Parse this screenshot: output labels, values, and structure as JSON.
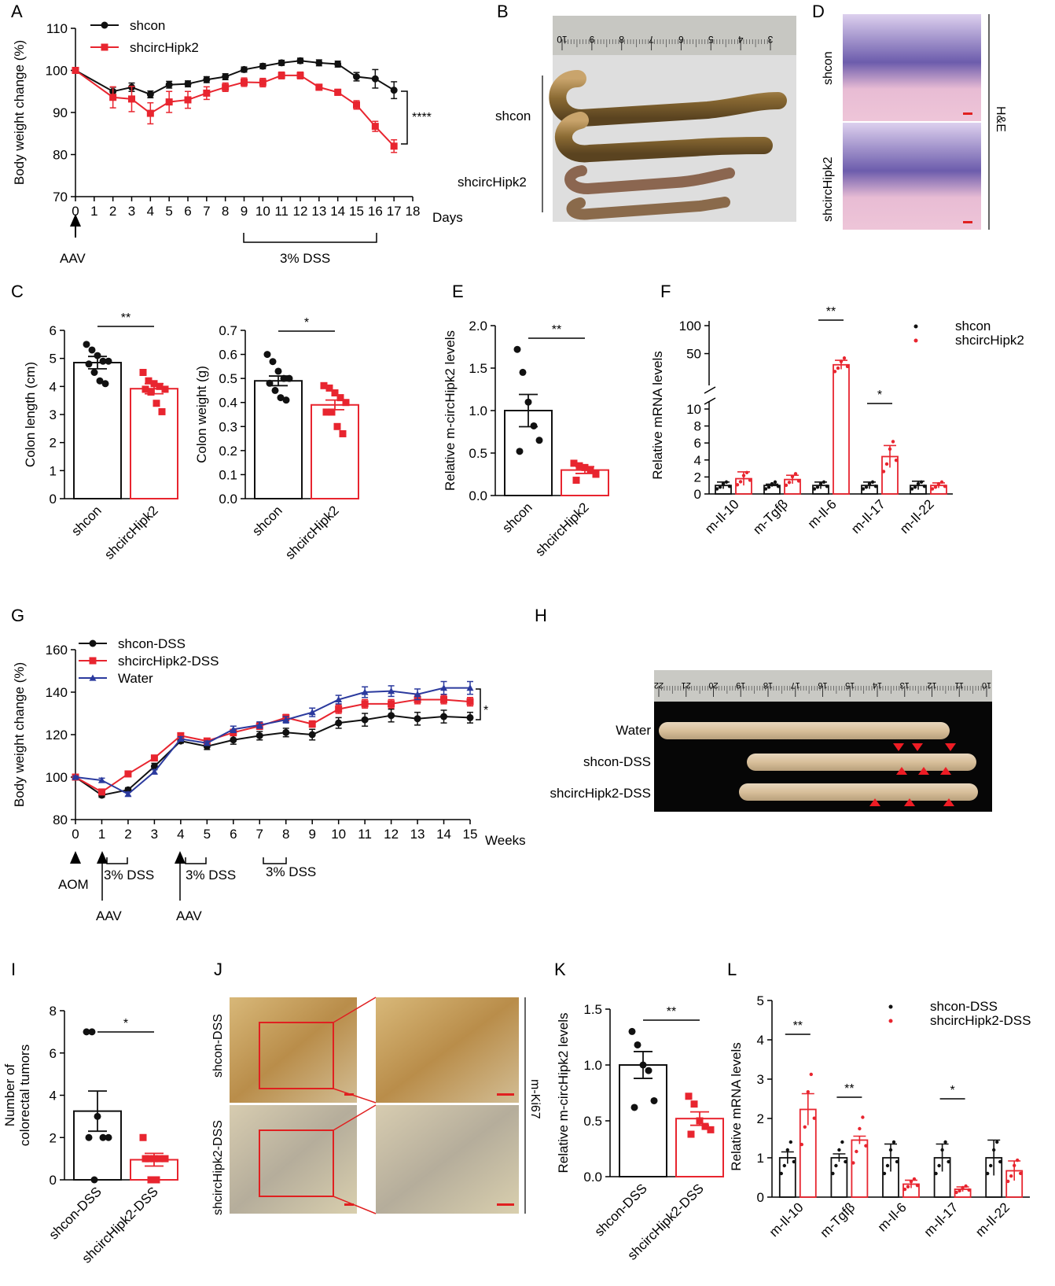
{
  "colors": {
    "black": "#111111",
    "red": "#e8252f",
    "blue": "#2b3a9e",
    "redBox": "#e02020"
  },
  "panels": {
    "A": "A",
    "B": "B",
    "C": "C",
    "D": "D",
    "E": "E",
    "F": "F",
    "G": "G",
    "H": "H",
    "I": "I",
    "J": "J",
    "K": "K",
    "L": "L"
  },
  "annotations": {
    "A_days": "Days",
    "A_aav": "AAV",
    "A_dss": "3% DSS",
    "A_sig": "****",
    "B_shcon": "shcon",
    "B_shcirc": "shcircHipk2",
    "D_shcon": "shcon",
    "D_shcirc": "shcircHipk2",
    "D_stain": "H&E",
    "G_weeks": "Weeks",
    "G_aom": "AOM",
    "G_aav1": "AAV",
    "G_aav2": "AAV",
    "G_dss1": "3% DSS",
    "G_dss2": "3% DSS",
    "G_dss3": "3% DSS",
    "G_sig": "*",
    "H_water": "Water",
    "H_shcon": "shcon-DSS",
    "H_shcirc": "shcircHipk2-DSS",
    "J_shcon": "shcon-DSS",
    "J_shcirc": "shcircHipk2-DSS",
    "J_stain": "m-Ki67",
    "B_ruler": [
      "10",
      "9",
      "8",
      "7",
      "6",
      "5",
      "4",
      "3"
    ],
    "H_ruler": [
      "22",
      "21",
      "20",
      "19",
      "18",
      "17",
      "16",
      "15",
      "14",
      "13",
      "12",
      "11",
      "10"
    ]
  },
  "chart_data": [
    {
      "id": "A",
      "type": "line",
      "ylabel": "Body weight change (%)",
      "ylim": [
        70,
        110
      ],
      "yticks": [
        70,
        80,
        90,
        100,
        110
      ],
      "x": [
        0,
        1,
        2,
        3,
        4,
        5,
        6,
        7,
        8,
        9,
        10,
        11,
        12,
        13,
        14,
        15,
        16,
        17,
        18
      ],
      "xlim": [
        0,
        18
      ],
      "series": [
        {
          "name": "shcon",
          "color": "#111111",
          "marker": "circle",
          "x": [
            0,
            2,
            3,
            4,
            5,
            6,
            7,
            8,
            9,
            10,
            11,
            12,
            13,
            14,
            15,
            16,
            17
          ],
          "values": [
            100,
            95,
            96,
            94.3,
            96.6,
            96.8,
            97.8,
            98.5,
            100.2,
            101,
            101.8,
            102.3,
            101.8,
            101.5,
            98.5,
            98,
            95.3
          ],
          "err": [
            0,
            1,
            1,
            0.8,
            0.8,
            0.7,
            0.7,
            0.7,
            0.6,
            0.6,
            0.6,
            0.6,
            0.7,
            0.7,
            1,
            2.2,
            2
          ]
        },
        {
          "name": "shcircHipk2",
          "color": "#e8252f",
          "marker": "square",
          "x": [
            0,
            2,
            3,
            4,
            5,
            6,
            7,
            8,
            9,
            10,
            11,
            12,
            13,
            14,
            15,
            16,
            17
          ],
          "values": [
            100,
            93.6,
            93.2,
            89.8,
            92.5,
            93,
            94.6,
            96,
            97.2,
            97.1,
            98.8,
            98.8,
            96,
            94.8,
            91.8,
            86.7,
            82
          ],
          "err": [
            0,
            2.5,
            3,
            2.5,
            2.5,
            2,
            1.5,
            1,
            1,
            1,
            0.8,
            0.8,
            0.7,
            0.7,
            1,
            1.2,
            1.5
          ]
        }
      ]
    },
    {
      "id": "C1",
      "type": "bar",
      "ylabel": "Colon length (cm)",
      "ylim": [
        0,
        6
      ],
      "yticks": [
        0,
        1,
        2,
        3,
        4,
        5,
        6
      ],
      "categories": [
        "shcon",
        "shcircHipk2"
      ],
      "values": [
        4.85,
        3.92
      ],
      "err": [
        0.22,
        0.18
      ],
      "points": [
        [
          5.5,
          5.3,
          5.1,
          4.9,
          4.9,
          4.8,
          4.5,
          4.2,
          4.1
        ],
        [
          4.5,
          4.2,
          4.1,
          4.0,
          3.9,
          3.9,
          3.8,
          3.4,
          3.1
        ]
      ],
      "sig": "**"
    },
    {
      "id": "C2",
      "type": "bar",
      "ylabel": "Colon weight (g)",
      "ylim": [
        0,
        0.7
      ],
      "yticks": [
        "0.0",
        "0.1",
        "0.2",
        "0.3",
        "0.4",
        "0.5",
        "0.6",
        "0.7"
      ],
      "categories": [
        "shcon",
        "shcircHipk2"
      ],
      "values": [
        0.49,
        0.39
      ],
      "err": [
        0.02,
        0.02
      ],
      "points": [
        [
          0.6,
          0.57,
          0.53,
          0.5,
          0.5,
          0.48,
          0.45,
          0.42,
          0.41
        ],
        [
          0.47,
          0.46,
          0.44,
          0.42,
          0.4,
          0.36,
          0.36,
          0.3,
          0.27
        ]
      ],
      "sig": "*"
    },
    {
      "id": "E",
      "type": "bar",
      "ylabel": "Relative m-circHipk2 levels",
      "ylim": [
        0,
        2.0
      ],
      "yticks": [
        "0.0",
        "0.5",
        "1.0",
        "1.5",
        "2.0"
      ],
      "categories": [
        "shcon",
        "shcircHipk2"
      ],
      "values": [
        1.0,
        0.3
      ],
      "err": [
        0.19,
        0.04
      ],
      "points": [
        [
          1.72,
          1.45,
          1.1,
          0.82,
          0.65,
          0.52
        ],
        [
          0.38,
          0.35,
          0.33,
          0.3,
          0.25,
          0.18
        ]
      ],
      "sig": "**"
    },
    {
      "id": "F",
      "type": "bar",
      "ylabel": "Relative mRNA levels",
      "yticks_low": [
        "0",
        "2",
        "4",
        "6",
        "8",
        "10"
      ],
      "yticks_high": [
        "50",
        "100"
      ],
      "categories": [
        "m-Il-10",
        "m-Tgfβ",
        "m-Il-6",
        "m-Il-17",
        "m-Il-22"
      ],
      "series": [
        {
          "name": "shcon",
          "color": "#111111",
          "values": [
            1.0,
            1.0,
            1.0,
            1.0,
            1.0
          ],
          "err": [
            0.4,
            0.15,
            0.4,
            0.4,
            0.5
          ]
        },
        {
          "name": "shcircHipk2",
          "color": "#e8252f",
          "values": [
            1.8,
            1.7,
            30,
            4.4,
            1.0
          ],
          "err": [
            0.8,
            0.5,
            8,
            1.3,
            0.3
          ]
        }
      ],
      "sig": [
        {
          "category": "m-Il-6",
          "label": "**"
        },
        {
          "category": "m-Il-17",
          "label": "*"
        }
      ]
    },
    {
      "id": "G",
      "type": "line",
      "ylabel": "Body weight change (%)",
      "ylim": [
        80,
        160
      ],
      "yticks": [
        80,
        100,
        120,
        140,
        160
      ],
      "xlim": [
        0,
        15
      ],
      "x": [
        0,
        1,
        2,
        3,
        4,
        5,
        6,
        7,
        8,
        9,
        10,
        11,
        12,
        13,
        14,
        15
      ],
      "series": [
        {
          "name": "shcon-DSS",
          "color": "#111111",
          "marker": "circle",
          "values": [
            100,
            91.5,
            94,
            105,
            117,
            114.5,
            117.5,
            119.5,
            121,
            120,
            125.5,
            127,
            129,
            127.5,
            128.5,
            128
          ],
          "err": [
            0.5,
            1,
            1,
            1.5,
            1,
            1.5,
            2,
            2,
            2,
            2.5,
            2.5,
            3,
            3,
            3,
            3,
            2.5
          ]
        },
        {
          "name": "shcircHipk2-DSS",
          "color": "#e8252f",
          "marker": "square",
          "values": [
            100,
            93,
            101.5,
            109,
            119.5,
            117,
            121,
            124,
            128,
            125,
            132,
            134.5,
            134.5,
            136.5,
            136.5,
            135.5
          ],
          "err": [
            0.5,
            1,
            1,
            1,
            1,
            1,
            1.5,
            1.5,
            1.5,
            1.5,
            2,
            2,
            2,
            2,
            2,
            2
          ]
        },
        {
          "name": "Water",
          "color": "#2b3a9e",
          "marker": "triangle",
          "values": [
            100,
            98.5,
            92,
            102.5,
            118,
            116,
            122.5,
            124.5,
            127,
            130.5,
            136.5,
            140,
            140.5,
            139,
            142,
            142
          ],
          "err": [
            0.5,
            1,
            1,
            1,
            1,
            1,
            1.5,
            1.5,
            1.5,
            2,
            2,
            2.5,
            2.5,
            2.5,
            3,
            3
          ]
        }
      ]
    },
    {
      "id": "I",
      "type": "bar",
      "ylabel_lines": [
        "Number of",
        "colorectal tumors"
      ],
      "ylim": [
        0,
        8
      ],
      "yticks": [
        0,
        2,
        4,
        6,
        8
      ],
      "categories": [
        "shcon-DSS",
        "shcircHipk2-DSS"
      ],
      "values": [
        3.25,
        0.95
      ],
      "err": [
        0.95,
        0.3
      ],
      "points": [
        [
          7,
          7,
          3,
          2,
          2,
          2,
          0
        ],
        [
          2,
          1,
          1,
          1,
          1,
          1,
          0,
          0
        ]
      ],
      "sig": "*"
    },
    {
      "id": "K",
      "type": "bar",
      "ylabel": "Relative m-circHipk2 levels",
      "ylim": [
        0,
        1.5
      ],
      "yticks": [
        "0.0",
        "0.5",
        "1.0",
        "1.5"
      ],
      "categories": [
        "shcon-DSS",
        "shcircHipk2-DSS"
      ],
      "values": [
        1.0,
        0.52
      ],
      "err": [
        0.12,
        0.06
      ],
      "points": [
        [
          1.3,
          1.18,
          1.0,
          0.95,
          0.68,
          0.62
        ],
        [
          0.72,
          0.65,
          0.5,
          0.45,
          0.42,
          0.38
        ]
      ],
      "sig": "**"
    },
    {
      "id": "L",
      "type": "bar",
      "ylabel": "Relative mRNA levels",
      "ylim": [
        0,
        5
      ],
      "yticks": [
        0,
        1,
        2,
        3,
        4,
        5
      ],
      "categories": [
        "m-Il-10",
        "m-Tgfβ",
        "m-Il-6",
        "m-Il-17",
        "m-Il-22"
      ],
      "series": [
        {
          "name": "shcon-DSS",
          "color": "#111111",
          "values": [
            1.0,
            1.0,
            1.0,
            1.0,
            1.0
          ],
          "err": [
            0.15,
            0.1,
            0.35,
            0.35,
            0.45
          ]
        },
        {
          "name": "shcircHipk2-DSS",
          "color": "#e8252f",
          "values": [
            2.23,
            1.45,
            0.33,
            0.2,
            0.67
          ],
          "err": [
            0.4,
            0.1,
            0.1,
            0.06,
            0.25
          ]
        }
      ],
      "sig": [
        {
          "category": "m-Il-10",
          "label": "**"
        },
        {
          "category": "m-Tgfβ",
          "label": "**"
        },
        {
          "category": "m-Il-17",
          "label": "*"
        }
      ]
    }
  ]
}
